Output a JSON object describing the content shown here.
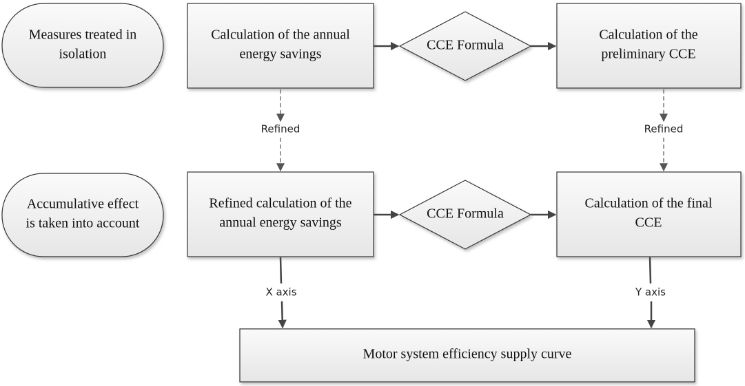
{
  "nodes": [
    {
      "lines": [
        "Measures treated in",
        "isolation"
      ]
    },
    {
      "lines": [
        "Calculation of the annual",
        "energy savings"
      ]
    },
    {
      "lines": [
        "CCE Formula"
      ]
    },
    {
      "lines": [
        "Calculation of the",
        "preliminary CCE"
      ]
    },
    {
      "lines": [
        "Accumulative effect",
        "is taken into account"
      ]
    },
    {
      "lines": [
        "Refined calculation of the",
        "annual energy savings"
      ]
    },
    {
      "lines": [
        "CCE Formula"
      ]
    },
    {
      "lines": [
        "Calculation of the final",
        "CCE"
      ]
    },
    {
      "lines": [
        "Motor system efficiency supply curve"
      ]
    }
  ],
  "edges": [
    {
      "label": "Refined"
    },
    {
      "label": "Refined"
    },
    {
      "label": "X axis"
    },
    {
      "label": "Y axis"
    }
  ]
}
